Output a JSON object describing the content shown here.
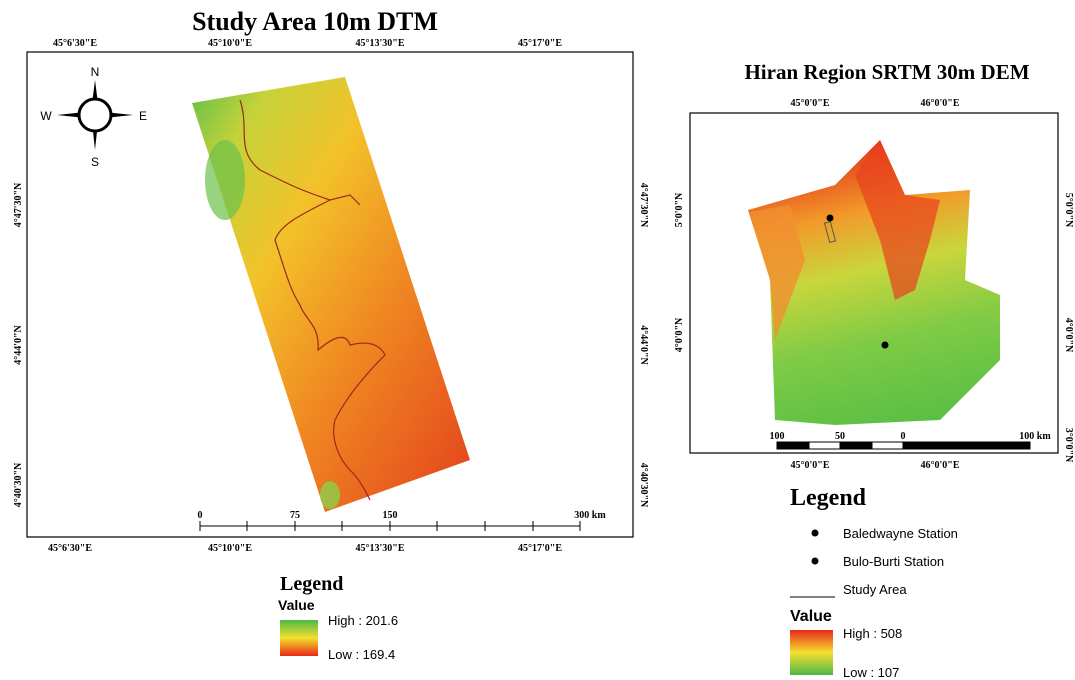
{
  "left_map": {
    "title": "Study Area 10m DTM",
    "lon_labels": [
      "45°6'30\"E",
      "45°10'0\"E",
      "45°13'30\"E",
      "45°17'0\"E"
    ],
    "lat_labels": [
      "4°47'30\"N",
      "4°44'0\"N",
      "4°40'30\"N"
    ],
    "compass": {
      "n": "N",
      "s": "S",
      "e": "E",
      "w": "W"
    },
    "scale_labels": [
      "0",
      "75",
      "150",
      "300 km"
    ],
    "legend": {
      "title": "Legend",
      "value_title": "Value",
      "high": "High : 201.6",
      "low": "Low : 169.4"
    }
  },
  "right_map": {
    "title": "Hiran Region SRTM 30m DEM",
    "lon_labels": [
      "45°0'0\"E",
      "46°0'0\"E"
    ],
    "lat_labels": [
      "5°0'0\"N",
      "4°0'0\"N",
      "3°0'0\"N"
    ],
    "scale_labels": [
      "100",
      "50",
      "0",
      "100 km"
    ],
    "legend": {
      "title": "Legend",
      "stations": [
        "Baledwayne Station",
        "Bulo-Burti Station"
      ],
      "study_area": "Study Area",
      "value_title": "Value",
      "high": "High : 508",
      "low": "Low : 107"
    }
  }
}
